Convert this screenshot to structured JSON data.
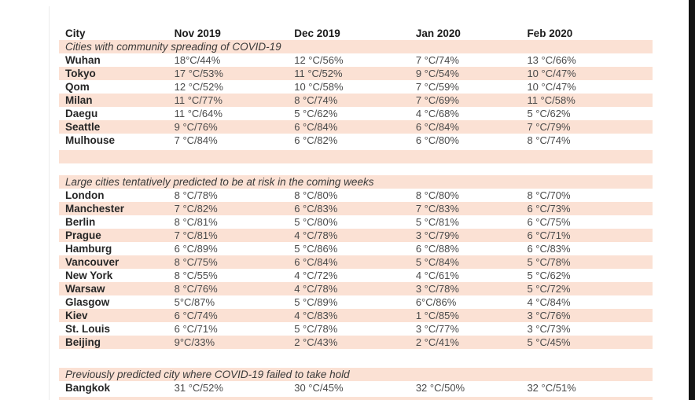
{
  "colors": {
    "stripe": "#fbe1d4",
    "section_band": "#fbe1d4",
    "right_bar": "#141414",
    "left_line": "#ececec",
    "header_text": "#1c1c1c",
    "city_text": "#272727",
    "value_text": "#4a4a4a",
    "section_text": "#3a3a3a"
  },
  "chart_data": {
    "type": "table",
    "title": "",
    "columns": [
      "City",
      "Nov 2019",
      "Dec 2019",
      "Jan 2020",
      "Feb 2020"
    ],
    "value_format": "temperature °C / relative humidity %",
    "sections": [
      {
        "title": "Cities with community spreading of COVID-19",
        "rows": [
          {
            "city": "Wuhan",
            "values": [
              "18°C/44%",
              "12 °C/56%",
              "7 °C/74%",
              "13 °C/66%"
            ]
          },
          {
            "city": "Tokyo",
            "values": [
              "17 °C/53%",
              "11 °C/52%",
              "9 °C/54%",
              "10 °C/47%"
            ]
          },
          {
            "city": "Qom",
            "values": [
              "12 °C/52%",
              "10 °C/58%",
              "7 °C/59%",
              "10 °C/47%"
            ]
          },
          {
            "city": "Milan",
            "values": [
              "11 °C/77%",
              "8 °C/74%",
              "7 °C/69%",
              "11 °C/58%"
            ]
          },
          {
            "city": "Daegu",
            "values": [
              "11 °C/64%",
              "5 °C/62%",
              "4 °C/68%",
              "5 °C/62%"
            ]
          },
          {
            "city": "Seattle",
            "values": [
              "9 °C/76%",
              "6 °C/84%",
              "6 °C/84%",
              "7 °C/79%"
            ]
          },
          {
            "city": "Mulhouse",
            "values": [
              "7 °C/84%",
              "6 °C/82%",
              "6 °C/80%",
              "8 °C/74%"
            ]
          }
        ]
      },
      {
        "title": "Large cities tentatively predicted to be at risk in the coming weeks",
        "rows": [
          {
            "city": "London",
            "values": [
              "8 °C/78%",
              "8 °C/80%",
              "8 °C/80%",
              "8 °C/70%"
            ]
          },
          {
            "city": "Manchester",
            "values": [
              "7 °C/82%",
              "6 °C/83%",
              "7 °C/83%",
              "6 °C/73%"
            ]
          },
          {
            "city": "Berlin",
            "values": [
              "8 °C/81%",
              "5 °C/80%",
              "5 °C/81%",
              "6 °C/75%"
            ]
          },
          {
            "city": "Prague",
            "values": [
              "7 °C/81%",
              "4 °C/78%",
              "3 °C/79%",
              "6 °C/71%"
            ]
          },
          {
            "city": "Hamburg",
            "values": [
              "6 °C/89%",
              "5 °C/86%",
              "6 °C/88%",
              "6 °C/83%"
            ]
          },
          {
            "city": "Vancouver",
            "values": [
              "8 °C/75%",
              "6 °C/84%",
              "5 °C/84%",
              "5 °C/78%"
            ]
          },
          {
            "city": "New York",
            "values": [
              "8 °C/55%",
              "4 °C/72%",
              "4 °C/61%",
              "5 °C/62%"
            ]
          },
          {
            "city": "Warsaw",
            "values": [
              "8 °C/76%",
              "4 °C/78%",
              "3 °C/78%",
              "5 °C/72%"
            ]
          },
          {
            "city": "Glasgow",
            "values": [
              "5°C/87%",
              "5 °C/89%",
              "6°C/86%",
              "4 °C/84%"
            ]
          },
          {
            "city": "Kiev",
            "values": [
              "6 °C/74%",
              "4 °C/83%",
              "1 °C/85%",
              "3 °C/76%"
            ]
          },
          {
            "city": "St. Louis",
            "values": [
              "6 °C/71%",
              "5 °C/78%",
              "3 °C/77%",
              "3 °C/73%"
            ]
          },
          {
            "city": "Beijing",
            "values": [
              "9°C/33%",
              "2 °C/43%",
              "2 °C/41%",
              "5 °C/45%"
            ]
          }
        ]
      },
      {
        "title": "Previously predicted city where COVID-19 failed to take hold",
        "rows": [
          {
            "city": "Bangkok",
            "values": [
              "31 °C/52%",
              "30 °C/45%",
              "32 °C/50%",
              "32 °C/51%"
            ]
          }
        ]
      }
    ]
  }
}
